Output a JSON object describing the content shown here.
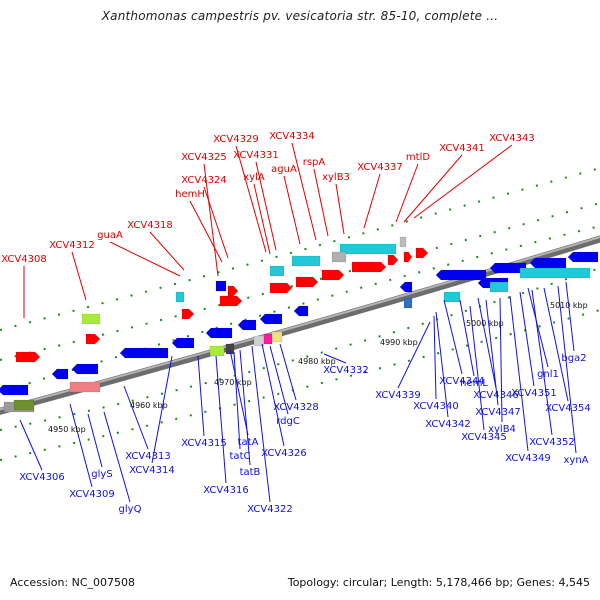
{
  "title": "Xanthomonas campestris pv. vesicatoria str. 85-10, complete ...",
  "footer": {
    "accession": "Accession: NC_007508",
    "summary": "Topology: circular; Length: 5,178,466 bp; Genes: 4,545"
  },
  "kbp_labels": [
    "4950 kbp",
    "4960 kbp",
    "4970 kbp",
    "4980 kbp",
    "4990 kbp",
    "5000 kbp",
    "5010 kbp"
  ],
  "genes_upper_labels": [
    "XCV4308",
    "XCV4312",
    "guaA",
    "XCV4318",
    "hemH",
    "XCV4324",
    "XCV4325",
    "XCV4329",
    "XCV4331",
    "xylA",
    "aguA",
    "XCV4334",
    "rspA",
    "xylB3",
    "XCV4337",
    "mtlD",
    "XCV4341",
    "XCV4343"
  ],
  "genes_lower_labels": [
    "XCV4306",
    "XCV4309",
    "glyS",
    "glyQ",
    "XCV4313",
    "XCV4314",
    "XCV4315",
    "XCV4316",
    "tatA",
    "tatC",
    "tatB",
    "XCV4322",
    "XCV4326",
    "rdgC",
    "XCV4328",
    "XCV4332",
    "XCV4339",
    "XCV4340",
    "XCV4342",
    "XCV4344",
    "hemL",
    "XCV4345",
    "XCV4346",
    "XCV4347",
    "xylB4",
    "XCV4349",
    "XCV4351",
    "gnl1",
    "XCV4352",
    "XCV4354",
    "bga2",
    "xynA"
  ],
  "colors": {
    "forward_gene": "#ff0000",
    "reverse_gene": "#0000ee",
    "forward_label": "#e00000",
    "reverse_label": "#1010e0",
    "backbone": "#8a8a8a",
    "tick": "#1a8a1a",
    "cyan_gene": "#22c8d8",
    "lime_gene": "#a8ec3a",
    "magenta_gene": "#ff1aa0",
    "pink_gene": "#f07e84"
  }
}
